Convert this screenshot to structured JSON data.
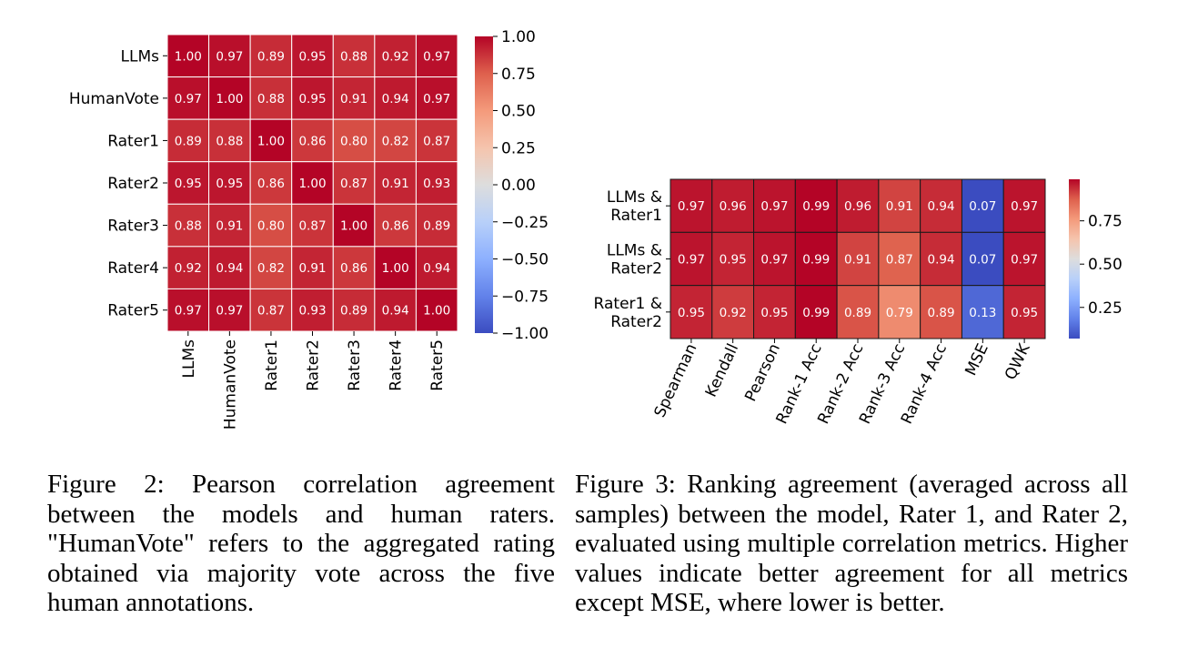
{
  "figures": [
    {
      "caption": "Figure 2: Pearson correlation agreement between the models and human raters. \"HumanVote\" refers to the aggregated rating obtained via majority vote across the five human annotations."
    },
    {
      "caption": "Figure 3: Ranking agreement (averaged across all samples) between the model, Rater 1, and Rater 2, evaluated using multiple correlation metrics. Higher values indicate better agreement for all metrics except MSE, where lower is better."
    }
  ],
  "chart_data": [
    {
      "type": "heatmap",
      "colormap": "coolwarm",
      "row_labels": [
        "LLMs",
        "HumanVote",
        "Rater1",
        "Rater2",
        "Rater3",
        "Rater4",
        "Rater5"
      ],
      "col_labels": [
        "LLMs",
        "HumanVote",
        "Rater1",
        "Rater2",
        "Rater3",
        "Rater4",
        "Rater5"
      ],
      "values": [
        [
          1.0,
          0.97,
          0.89,
          0.95,
          0.88,
          0.92,
          0.97
        ],
        [
          0.97,
          1.0,
          0.88,
          0.95,
          0.91,
          0.94,
          0.97
        ],
        [
          0.89,
          0.88,
          1.0,
          0.86,
          0.8,
          0.82,
          0.87
        ],
        [
          0.95,
          0.95,
          0.86,
          1.0,
          0.87,
          0.91,
          0.93
        ],
        [
          0.88,
          0.91,
          0.8,
          0.87,
          1.0,
          0.86,
          0.89
        ],
        [
          0.92,
          0.94,
          0.82,
          0.91,
          0.86,
          1.0,
          0.94
        ],
        [
          0.97,
          0.97,
          0.87,
          0.93,
          0.89,
          0.94,
          1.0
        ]
      ],
      "vmin": -1.0,
      "vmax": 1.0,
      "colorbar_ticks": [
        "1.00",
        "0.75",
        "0.50",
        "0.25",
        "0.00",
        "−0.25",
        "−0.50",
        "−0.75",
        "−1.00"
      ],
      "colorbar_tick_values": [
        1.0,
        0.75,
        0.5,
        0.25,
        0.0,
        -0.25,
        -0.5,
        -0.75,
        -1.0
      ],
      "annotation_format": "2 decimals",
      "cell_lines": "white"
    },
    {
      "type": "heatmap",
      "colormap": "coolwarm",
      "row_labels": [
        [
          "LLMs &",
          "Rater1"
        ],
        [
          "LLMs &",
          "Rater2"
        ],
        [
          "Rater1 &",
          "Rater2"
        ]
      ],
      "col_labels": [
        "Spearman",
        "Kendall",
        "Pearson",
        "Rank-1 Acc",
        "Rank-2 Acc",
        "Rank-3 Acc",
        "Rank-4 Acc",
        "MSE",
        "QWK"
      ],
      "values": [
        [
          0.97,
          0.96,
          0.97,
          0.99,
          0.96,
          0.91,
          0.94,
          0.07,
          0.97
        ],
        [
          0.97,
          0.95,
          0.97,
          0.99,
          0.91,
          0.87,
          0.94,
          0.07,
          0.97
        ],
        [
          0.95,
          0.92,
          0.95,
          0.99,
          0.89,
          0.79,
          0.89,
          0.13,
          0.95
        ]
      ],
      "vmin": 0.07,
      "vmax": 0.99,
      "colorbar_ticks": [
        "0.75",
        "0.50",
        "0.25"
      ],
      "colorbar_tick_values": [
        0.75,
        0.5,
        0.25
      ],
      "annotation_format": "2 decimals",
      "x_tick_rotation": "diagonal",
      "cell_lines": "black"
    }
  ]
}
